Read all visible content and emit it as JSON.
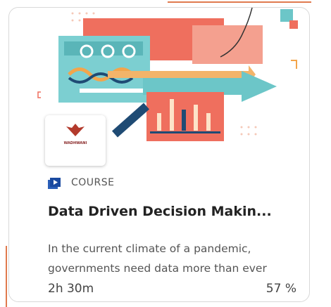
{
  "card": {
    "logo_text": "WADHWANI",
    "kind": "COURSE",
    "title": "Data Driven Decision Makin...",
    "description": "In the current climate of a pandemic, governments need data more than ever",
    "duration": "2h 30m",
    "progress": "57 %"
  }
}
